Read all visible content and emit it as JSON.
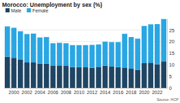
{
  "chart_data": {
    "type": "bar",
    "title": "Morocco: Unemployment by sex (%)",
    "source": "Source: HCP",
    "categories": [
      null,
      "2000",
      null,
      "2002",
      null,
      "2004",
      null,
      "2006",
      null,
      "2008",
      null,
      "2010",
      null,
      "2012",
      null,
      "2014",
      null,
      "2016",
      null,
      "2018",
      null,
      "2020",
      null,
      "2022",
      null
    ],
    "series": [
      {
        "name": "Male",
        "color": "#1f4563",
        "values": [
          13.5,
          13.0,
          12.2,
          11.0,
          11.0,
          10.5,
          10.5,
          9.7,
          9.7,
          9.5,
          9.0,
          9.0,
          8.9,
          8.7,
          9.1,
          9.6,
          9.2,
          9.0,
          8.8,
          8.3,
          7.8,
          10.7,
          10.9,
          10.2,
          11.5
        ]
      },
      {
        "name": "Female",
        "color": "#2aa6e3",
        "values": [
          13.1,
          13.0,
          12.3,
          12.3,
          12.5,
          11.3,
          11.5,
          9.6,
          9.8,
          9.8,
          9.5,
          9.5,
          9.6,
          9.9,
          9.7,
          10.4,
          10.6,
          10.8,
          14.6,
          13.7,
          13.5,
          16.1,
          16.6,
          17.4,
          18.3
        ]
      }
    ],
    "stacked": true,
    "ylim": [
      0,
      30
    ],
    "yticks": [
      0,
      5,
      10,
      15,
      20,
      25
    ],
    "grid": true,
    "legend": "top-left"
  }
}
